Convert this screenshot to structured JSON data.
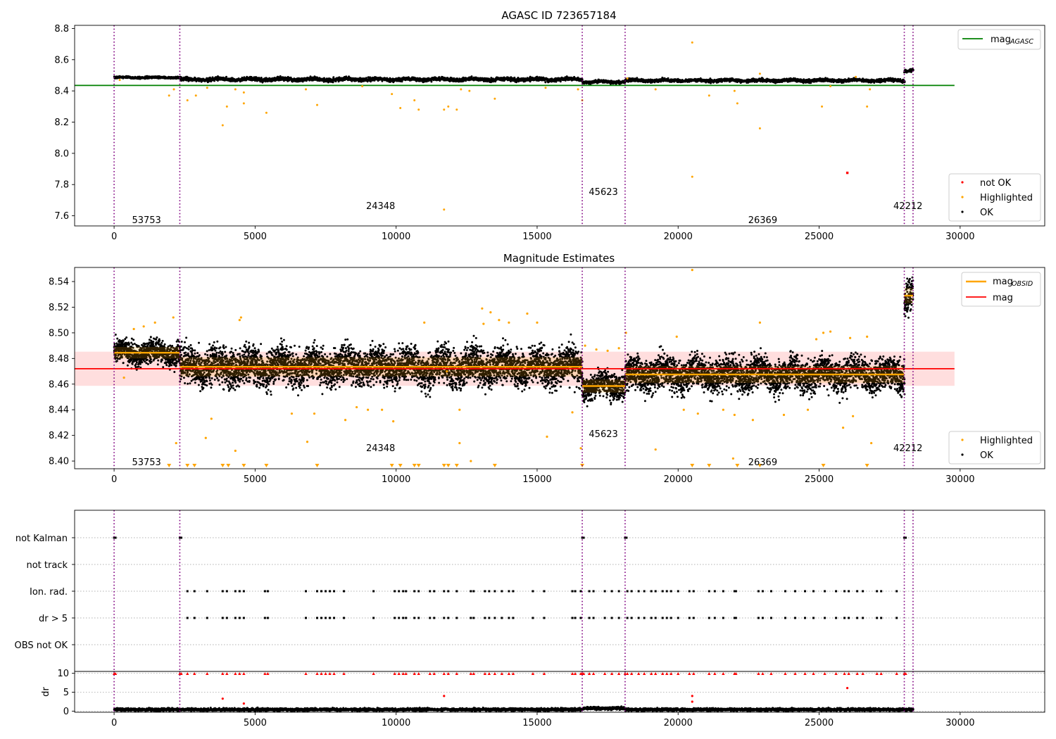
{
  "chart_data": [
    {
      "type": "scatter",
      "title": "AGASC ID 723657184",
      "xlabel": "",
      "ylabel": "",
      "xlim": [
        -1400,
        33000
      ],
      "ylim": [
        7.535,
        8.82
      ],
      "x_ticks": [
        0,
        5000,
        10000,
        15000,
        20000,
        25000,
        30000
      ],
      "y_ticks": [
        7.6,
        7.8,
        8.0,
        8.2,
        8.4,
        8.6,
        8.8
      ],
      "obs_boundaries": [
        0,
        2330,
        16600,
        18120,
        28020,
        28330
      ],
      "obs_labels": [
        {
          "text": "53753",
          "x": 1150,
          "y": 7.575
        },
        {
          "text": "24348",
          "x": 9450,
          "y": 7.665
        },
        {
          "text": "45623",
          "x": 17350,
          "y": 7.755
        },
        {
          "text": "26369",
          "x": 23000,
          "y": 7.575
        },
        {
          "text": "42212",
          "x": 28150,
          "y": 7.665
        }
      ],
      "reference_line": {
        "name": "mag$_{AGASC}$",
        "legend_main": "mag",
        "legend_sub": "AGASC",
        "value": 8.435,
        "x_range": [
          -1400,
          29800
        ],
        "color": "#008000"
      },
      "ok_bands": [
        {
          "x0": 0,
          "x1": 2330,
          "center": 8.486,
          "spread": 0.007
        },
        {
          "x0": 2330,
          "x1": 16600,
          "center": 8.474,
          "spread": 0.013
        },
        {
          "x0": 16600,
          "x1": 18120,
          "center": 8.458,
          "spread": 0.01
        },
        {
          "x0": 18120,
          "x1": 28020,
          "center": 8.467,
          "spread": 0.011
        },
        {
          "x0": 28020,
          "x1": 28330,
          "center": 8.53,
          "spread": 0.012
        }
      ],
      "highlighted_points": [
        {
          "x": 200,
          "y": 8.47
        },
        {
          "x": 1950,
          "y": 8.37
        },
        {
          "x": 2120,
          "y": 8.41
        },
        {
          "x": 2600,
          "y": 8.34
        },
        {
          "x": 2900,
          "y": 8.37
        },
        {
          "x": 3300,
          "y": 8.42
        },
        {
          "x": 3850,
          "y": 8.18
        },
        {
          "x": 4000,
          "y": 8.3
        },
        {
          "x": 4300,
          "y": 8.41
        },
        {
          "x": 4600,
          "y": 8.39
        },
        {
          "x": 4600,
          "y": 8.32
        },
        {
          "x": 5400,
          "y": 8.26
        },
        {
          "x": 6800,
          "y": 8.41
        },
        {
          "x": 7200,
          "y": 8.31
        },
        {
          "x": 8800,
          "y": 8.43
        },
        {
          "x": 9850,
          "y": 8.38
        },
        {
          "x": 10150,
          "y": 8.29
        },
        {
          "x": 10650,
          "y": 8.34
        },
        {
          "x": 10800,
          "y": 8.28
        },
        {
          "x": 11700,
          "y": 8.28
        },
        {
          "x": 11700,
          "y": 7.64
        },
        {
          "x": 11850,
          "y": 8.3
        },
        {
          "x": 12150,
          "y": 8.28
        },
        {
          "x": 12300,
          "y": 8.41
        },
        {
          "x": 12600,
          "y": 8.4
        },
        {
          "x": 13500,
          "y": 8.35
        },
        {
          "x": 15300,
          "y": 8.42
        },
        {
          "x": 16450,
          "y": 8.41
        },
        {
          "x": 16600,
          "y": 8.34
        },
        {
          "x": 18200,
          "y": 8.48
        },
        {
          "x": 19200,
          "y": 8.41
        },
        {
          "x": 20500,
          "y": 8.71
        },
        {
          "x": 20500,
          "y": 7.85
        },
        {
          "x": 21100,
          "y": 8.37
        },
        {
          "x": 22000,
          "y": 8.4
        },
        {
          "x": 22100,
          "y": 8.32
        },
        {
          "x": 22900,
          "y": 8.16
        },
        {
          "x": 22900,
          "y": 8.51
        },
        {
          "x": 25100,
          "y": 8.3
        },
        {
          "x": 25400,
          "y": 8.43
        },
        {
          "x": 26300,
          "y": 8.49
        },
        {
          "x": 26700,
          "y": 8.3
        },
        {
          "x": 26800,
          "y": 8.41
        }
      ],
      "not_ok_points": [
        {
          "x": 26000,
          "y": 7.875
        }
      ],
      "legend": [
        "not OK",
        "Highlighted",
        "OK"
      ],
      "legend_colors": [
        "#ff0000",
        "#ffa500",
        "#000000"
      ]
    },
    {
      "type": "scatter",
      "title": "Magnitude Estimates",
      "xlabel": "",
      "ylabel": "",
      "xlim": [
        -1400,
        33000
      ],
      "ylim": [
        8.394,
        8.551
      ],
      "x_ticks": [
        0,
        5000,
        10000,
        15000,
        20000,
        25000,
        30000
      ],
      "y_ticks": [
        8.4,
        8.42,
        8.44,
        8.46,
        8.48,
        8.5,
        8.52,
        8.54
      ],
      "obs_boundaries": [
        0,
        2330,
        16600,
        18120,
        28020,
        28330
      ],
      "obs_labels": [
        {
          "text": "53753",
          "x": 1150,
          "y": 8.3995
        },
        {
          "text": "24348",
          "x": 9450,
          "y": 8.4105
        },
        {
          "text": "45623",
          "x": 17350,
          "y": 8.4215
        },
        {
          "text": "26369",
          "x": 23000,
          "y": 8.3995
        },
        {
          "text": "42212",
          "x": 28150,
          "y": 8.4105
        }
      ],
      "global_mag": {
        "name": "mag",
        "value": 8.472,
        "std": 0.0133,
        "x_range": [
          -1400,
          29800
        ],
        "color": "#ff0000"
      },
      "obsid_mags": {
        "name": "mag$_{OBSID}$",
        "legend_main": "mag",
        "legend_sub": "OBSID",
        "color": "#ffa500",
        "segments": [
          {
            "x0": 0,
            "x1": 2330,
            "value": 8.4845,
            "std": 0.0075
          },
          {
            "x0": 2330,
            "x1": 16600,
            "value": 8.4735,
            "std": 0.0125
          },
          {
            "x0": 16600,
            "x1": 18120,
            "value": 8.4585,
            "std": 0.0085
          },
          {
            "x0": 18120,
            "x1": 28020,
            "value": 8.4675,
            "std": 0.011
          },
          {
            "x0": 28020,
            "x1": 28330,
            "value": 8.529,
            "std": 0.01
          }
        ]
      },
      "highlighted_points": [
        {
          "x": 350,
          "y": 8.465
        },
        {
          "x": 700,
          "y": 8.503
        },
        {
          "x": 1050,
          "y": 8.505
        },
        {
          "x": 1450,
          "y": 8.508
        },
        {
          "x": 2100,
          "y": 8.512
        },
        {
          "x": 2200,
          "y": 8.414
        },
        {
          "x": 3250,
          "y": 8.418
        },
        {
          "x": 3450,
          "y": 8.433
        },
        {
          "x": 4300,
          "y": 8.408
        },
        {
          "x": 4450,
          "y": 8.51
        },
        {
          "x": 4500,
          "y": 8.512
        },
        {
          "x": 6300,
          "y": 8.437
        },
        {
          "x": 6850,
          "y": 8.415
        },
        {
          "x": 7100,
          "y": 8.437
        },
        {
          "x": 8200,
          "y": 8.432
        },
        {
          "x": 8600,
          "y": 8.442
        },
        {
          "x": 9000,
          "y": 8.44
        },
        {
          "x": 9500,
          "y": 8.44
        },
        {
          "x": 9900,
          "y": 8.431
        },
        {
          "x": 11000,
          "y": 8.508
        },
        {
          "x": 11800,
          "y": 8.47
        },
        {
          "x": 12250,
          "y": 8.414
        },
        {
          "x": 12250,
          "y": 8.44
        },
        {
          "x": 12650,
          "y": 8.4
        },
        {
          "x": 13050,
          "y": 8.519
        },
        {
          "x": 13100,
          "y": 8.507
        },
        {
          "x": 13350,
          "y": 8.516
        },
        {
          "x": 13650,
          "y": 8.51
        },
        {
          "x": 14000,
          "y": 8.508
        },
        {
          "x": 14650,
          "y": 8.515
        },
        {
          "x": 15000,
          "y": 8.508
        },
        {
          "x": 15350,
          "y": 8.419
        },
        {
          "x": 16250,
          "y": 8.438
        },
        {
          "x": 16550,
          "y": 8.41
        },
        {
          "x": 16700,
          "y": 8.49
        },
        {
          "x": 17100,
          "y": 8.487
        },
        {
          "x": 17500,
          "y": 8.486
        },
        {
          "x": 17900,
          "y": 8.488
        },
        {
          "x": 18150,
          "y": 8.5
        },
        {
          "x": 19200,
          "y": 8.409
        },
        {
          "x": 19950,
          "y": 8.497
        },
        {
          "x": 20200,
          "y": 8.44
        },
        {
          "x": 20500,
          "y": 8.549
        },
        {
          "x": 20700,
          "y": 8.437
        },
        {
          "x": 21600,
          "y": 8.44
        },
        {
          "x": 21950,
          "y": 8.402
        },
        {
          "x": 22000,
          "y": 8.436
        },
        {
          "x": 22650,
          "y": 8.432
        },
        {
          "x": 22900,
          "y": 8.508
        },
        {
          "x": 23750,
          "y": 8.436
        },
        {
          "x": 24600,
          "y": 8.44
        },
        {
          "x": 24900,
          "y": 8.495
        },
        {
          "x": 25150,
          "y": 8.5
        },
        {
          "x": 25400,
          "y": 8.501
        },
        {
          "x": 25850,
          "y": 8.426
        },
        {
          "x": 26100,
          "y": 8.496
        },
        {
          "x": 26200,
          "y": 8.435
        },
        {
          "x": 26700,
          "y": 8.497
        },
        {
          "x": 26850,
          "y": 8.414
        }
      ],
      "off_scale_points_x": [
        1950,
        2600,
        2850,
        3850,
        4050,
        4600,
        5400,
        7200,
        9850,
        10150,
        10650,
        10800,
        11700,
        11850,
        12150,
        13500,
        16600,
        20500,
        21100,
        22100,
        22900,
        25150,
        26700
      ],
      "legend": [
        "Highlighted",
        "OK"
      ],
      "legend_colors": [
        "#ffa500",
        "#000000"
      ]
    },
    {
      "type": "scatter",
      "title": "",
      "xlabel": "",
      "ylabel": "",
      "xlim": [
        -1400,
        33000
      ],
      "x_ticks": [
        0,
        5000,
        10000,
        15000,
        20000,
        25000,
        30000
      ],
      "obs_boundaries": [
        0,
        2330,
        16600,
        18120,
        28020,
        28330
      ],
      "flag_categories": [
        "not Kalman",
        "not track",
        "Ion. rad.",
        "dr > 5",
        "OBS not OK"
      ],
      "flag_events": {
        "not Kalman": [
          0,
          50,
          2330,
          2380,
          16600,
          16650,
          18120,
          18170,
          28020,
          28070
        ],
        "not track": [],
        "Ion. rad.": [
          2600,
          2850,
          3300,
          3850,
          4000,
          4300,
          4450,
          4600,
          5350,
          5450,
          6800,
          7200,
          7350,
          7500,
          7650,
          7800,
          8150,
          9200,
          9950,
          10100,
          10250,
          10350,
          10650,
          10800,
          11200,
          11350,
          11700,
          11850,
          12150,
          12650,
          12750,
          13150,
          13300,
          13500,
          13750,
          14000,
          14150,
          14850,
          15250,
          16250,
          16350,
          16550,
          16850,
          17000,
          17400,
          17650,
          17900,
          18200,
          18350,
          18600,
          18800,
          19050,
          19200,
          19450,
          19600,
          19750,
          20000,
          20400,
          20550,
          21100,
          21300,
          21600,
          22000,
          22050,
          22850,
          23000,
          23300,
          23800,
          24150,
          24500,
          24800,
          25200,
          25600,
          25900,
          26050,
          26350,
          26550,
          27050,
          27200,
          27750
        ],
        "dr > 5": [
          2600,
          2850,
          3300,
          3850,
          4000,
          4300,
          4450,
          4600,
          5350,
          5450,
          6800,
          7200,
          7350,
          7500,
          7650,
          7800,
          8150,
          9200,
          9950,
          10100,
          10250,
          10350,
          10650,
          10800,
          11200,
          11350,
          11700,
          11850,
          12150,
          12650,
          12750,
          13150,
          13300,
          13500,
          13750,
          14000,
          14150,
          14850,
          15250,
          16250,
          16350,
          16550,
          16850,
          17000,
          17400,
          17650,
          17900,
          18200,
          18350,
          18600,
          18800,
          19050,
          19200,
          19450,
          19600,
          19750,
          20000,
          20400,
          20550,
          21100,
          21300,
          21600,
          22000,
          22050,
          22850,
          23000,
          23300,
          23800,
          24150,
          24500,
          24800,
          25200,
          25600,
          25900,
          26050,
          26350,
          26550,
          27050,
          27200,
          27750
        ],
        "OBS not OK": []
      }
    },
    {
      "type": "scatter",
      "title": "",
      "xlabel": "",
      "ylabel": "dr",
      "xlim": [
        -1400,
        33000
      ],
      "ylim": [
        -0.3,
        10.5
      ],
      "x_ticks": [
        0,
        5000,
        10000,
        15000,
        20000,
        25000,
        30000
      ],
      "y_ticks": [
        0,
        5,
        10
      ],
      "obs_boundaries": [
        0,
        2330,
        16600,
        18120,
        28020,
        28330
      ],
      "ok_baseline": {
        "center": 0.4,
        "spread": 0.35
      },
      "clipped_red_points_x": [
        0,
        50,
        2330,
        2380,
        2600,
        2850,
        3300,
        3850,
        4000,
        4300,
        4450,
        4600,
        5350,
        5450,
        6800,
        7200,
        7350,
        7500,
        7650,
        7800,
        8150,
        9200,
        9950,
        10100,
        10250,
        10350,
        10650,
        10800,
        11200,
        11350,
        11700,
        11850,
        12150,
        12650,
        12750,
        13150,
        13300,
        13500,
        13750,
        14000,
        14150,
        14850,
        15250,
        16250,
        16350,
        16550,
        16600,
        16650,
        16850,
        17000,
        17400,
        17650,
        17900,
        18120,
        18200,
        18350,
        18600,
        18800,
        19050,
        19200,
        19450,
        19600,
        19750,
        20000,
        20400,
        20550,
        21100,
        21300,
        21600,
        22000,
        22050,
        22850,
        23000,
        23300,
        23800,
        24150,
        24500,
        24800,
        25200,
        25600,
        25900,
        26050,
        26350,
        26550,
        27050,
        27200,
        27750,
        28020,
        28070
      ],
      "scattered_red_points": [
        {
          "x": 3850,
          "y": 3.3
        },
        {
          "x": 4600,
          "y": 2.0
        },
        {
          "x": 11700,
          "y": 4.0
        },
        {
          "x": 20500,
          "y": 4.0
        },
        {
          "x": 20500,
          "y": 2.5
        },
        {
          "x": 26000,
          "y": 6.1
        }
      ]
    }
  ]
}
